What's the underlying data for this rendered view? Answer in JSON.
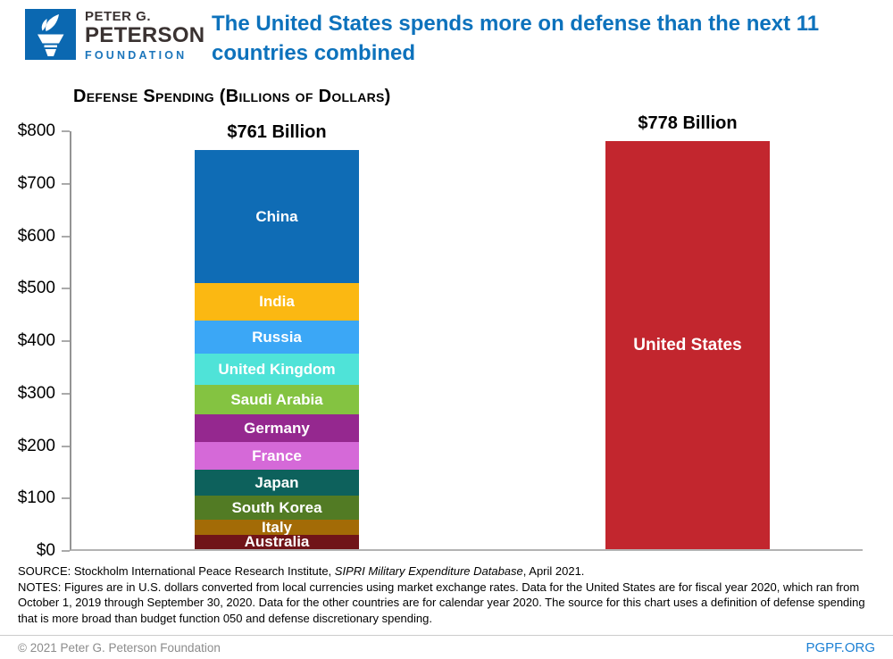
{
  "header": {
    "brand": {
      "line1": "PETER G.",
      "line2": "PETERSON",
      "line3": "FOUNDATION"
    },
    "title": "The United States spends more on defense than the next 11 countries combined"
  },
  "chart_data": {
    "type": "bar",
    "variant": "stacked-comparison",
    "title": "Defense Spending (Billions of Dollars)",
    "xlabel": "",
    "ylabel": "",
    "ylim": [
      0,
      800
    ],
    "ytick_step": 100,
    "ytick_labels": [
      "$0",
      "$100",
      "$200",
      "$300",
      "$400",
      "$500",
      "$600",
      "$700",
      "$800"
    ],
    "grid": false,
    "legend": "labels-inside-bars",
    "bars": [
      {
        "name": "next-11-countries",
        "total_label": "$761 Billion",
        "total": 761,
        "segments": [
          {
            "name": "China",
            "value": 253,
            "color": "#0F6CB5"
          },
          {
            "name": "India",
            "value": 73,
            "color": "#FBB812"
          },
          {
            "name": "Russia",
            "value": 62,
            "color": "#3BA7F6"
          },
          {
            "name": "United Kingdom",
            "value": 59,
            "color": "#4FE3D8"
          },
          {
            "name": "Saudi Arabia",
            "value": 57.5,
            "color": "#84C341"
          },
          {
            "name": "Germany",
            "value": 53,
            "color": "#95288F"
          },
          {
            "name": "France",
            "value": 52.5,
            "color": "#D569D8"
          },
          {
            "name": "Japan",
            "value": 49,
            "color": "#0D615C"
          },
          {
            "name": "South Korea",
            "value": 46,
            "color": "#527B24"
          },
          {
            "name": "Italy",
            "value": 28.5,
            "color": "#A36B06"
          },
          {
            "name": "Australia",
            "value": 27.5,
            "color": "#701418"
          }
        ]
      },
      {
        "name": "united-states",
        "total_label": "$778 Billion",
        "total": 778,
        "segments": [
          {
            "name": "United States",
            "value": 778,
            "color": "#C2262E"
          }
        ]
      }
    ]
  },
  "notes": {
    "source_prefix": "SOURCE: Stockholm International Peace Research Institute, ",
    "source_italic": "SIPRI Military Expenditure Database",
    "source_suffix": ", April 2021.",
    "notes_text": "NOTES: Figures are in U.S. dollars converted from local currencies using market exchange rates. Data for the United States are for fiscal year 2020, which ran from October 1, 2019 through September 30, 2020. Data for the other countries are for calendar year 2020. The source for this chart uses a definition of defense spending that is more broad than budget function 050 and defense discretionary spending."
  },
  "footer": {
    "copyright": "© 2021 Peter G. Peterson Foundation",
    "site": "PGPF.ORG"
  },
  "colors": {
    "brand_blue": "#0B68B1",
    "title_blue": "#0D72BC",
    "us_red": "#C2262E",
    "axis_gray": "#b3b3b3",
    "footer_gray": "#8C8C8C",
    "link_blue": "#1C80D4"
  }
}
